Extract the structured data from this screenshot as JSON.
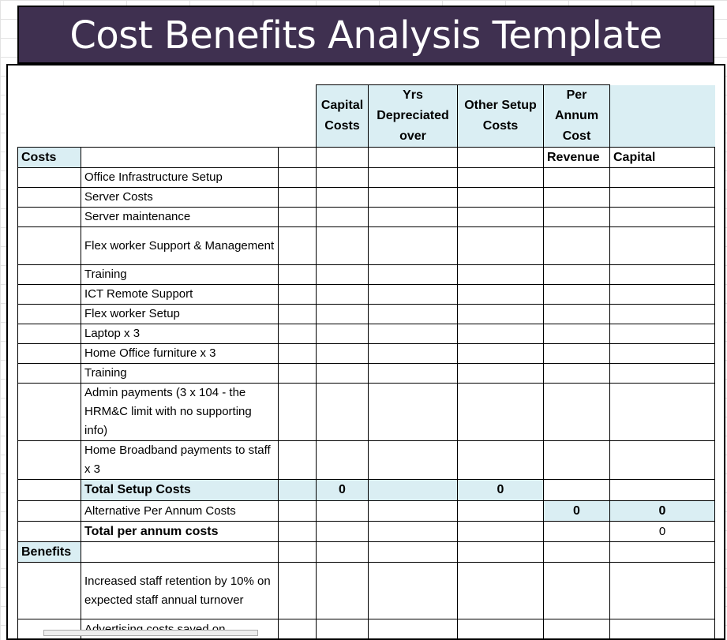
{
  "title": "Cost Benefits Analysis Template",
  "headers": {
    "capital_costs": "Capital Costs",
    "yrs_depreciated": "Yrs Depreciated over",
    "other_setup": "Other Setup Costs",
    "per_annum": "Per Annum Cost"
  },
  "colors": {
    "banner": "#3f3050",
    "shade": "#daeef3"
  },
  "rows": [
    {
      "a": "Costs",
      "a_shade": true,
      "g": "Revenue",
      "h": "Capital",
      "bold_gh": true
    },
    {
      "b": "Office Infrastructure Setup"
    },
    {
      "b": "Server Costs"
    },
    {
      "b": "Server maintenance"
    },
    {
      "b": "Flex worker Support & Management"
    },
    {
      "b": "Training"
    },
    {
      "b": "ICT Remote Support"
    },
    {
      "b": "Flex worker Setup"
    },
    {
      "b": "Laptop x 3"
    },
    {
      "b": "Home Office furniture x 3"
    },
    {
      "b": "Training"
    },
    {
      "b": "Admin payments (3 x 104 - the HRM&C limit with no supporting info)"
    },
    {
      "b": "Home Broadband payments to staff x 3"
    },
    {
      "b": "Total Setup Costs",
      "b_bold": true,
      "shade": [
        "b",
        "c",
        "d",
        "e",
        "f"
      ],
      "d": "0",
      "f": "0",
      "bold_vals": true
    },
    {
      "b": "Alternative Per Annum Costs",
      "shade": [
        "g",
        "h"
      ],
      "g": "0",
      "h": "0",
      "bold_vals": true
    },
    {
      "b": "Total per annum costs",
      "b_bold": true,
      "h": "0"
    },
    {
      "a": "Benefits",
      "a_shade": true
    },
    {
      "b": "Increased staff retention by 10% on expected staff annual turnover"
    },
    {
      "b": "Advertising costs saved on"
    }
  ]
}
